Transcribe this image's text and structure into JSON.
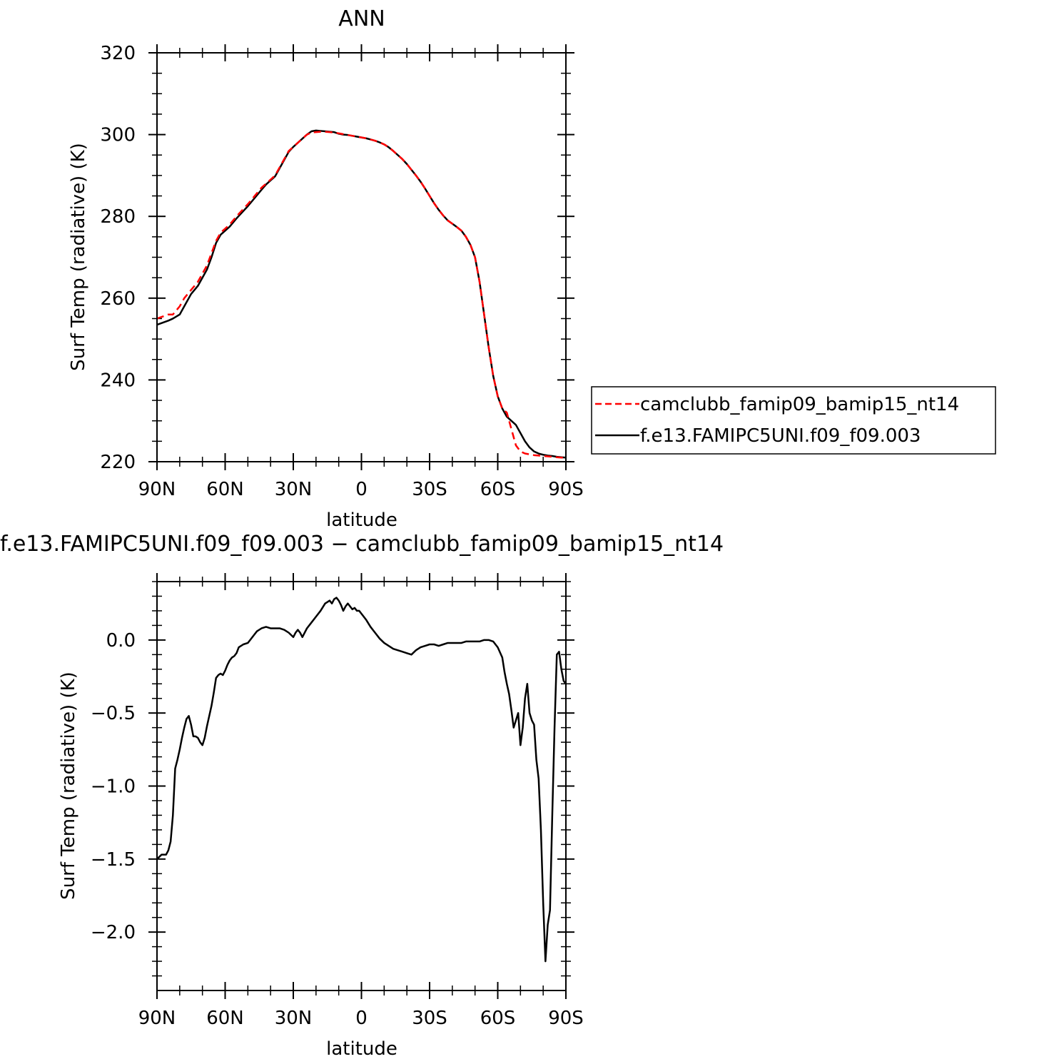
{
  "chart_data": [
    {
      "type": "line",
      "title": "ANN",
      "xlabel": "latitude",
      "ylabel": "Surf Temp (radiative) (K)",
      "xlim": [
        90,
        -90
      ],
      "ylim": [
        220,
        320
      ],
      "x_ticks": [
        {
          "value": 90,
          "label": "90N"
        },
        {
          "value": 60,
          "label": "60N"
        },
        {
          "value": 30,
          "label": "30N"
        },
        {
          "value": 0,
          "label": "0"
        },
        {
          "value": -30,
          "label": "30S"
        },
        {
          "value": -60,
          "label": "60S"
        },
        {
          "value": -90,
          "label": "90S"
        }
      ],
      "y_ticks": [
        {
          "value": 220,
          "label": "220"
        },
        {
          "value": 240,
          "label": "240"
        },
        {
          "value": 260,
          "label": "260"
        },
        {
          "value": 280,
          "label": "280"
        },
        {
          "value": 300,
          "label": "300"
        },
        {
          "value": 320,
          "label": "320"
        }
      ],
      "legend_position": "right",
      "series": [
        {
          "name": "camclubb_famip09_bamip15_nt14",
          "color": "#ff0000",
          "dash": "dashed",
          "x": [
            90,
            85,
            83,
            80,
            78,
            75,
            72,
            70,
            68,
            66,
            64,
            62,
            60,
            58,
            55,
            50,
            47,
            44,
            42,
            40,
            38,
            36,
            34,
            32,
            30,
            28,
            26,
            24,
            22,
            20,
            18,
            16,
            14,
            12,
            10,
            8,
            6,
            4,
            2,
            0,
            -2,
            -4,
            -6,
            -8,
            -10,
            -12,
            -14,
            -16,
            -18,
            -20,
            -22,
            -24,
            -26,
            -28,
            -30,
            -32,
            -34,
            -36,
            -38,
            -40,
            -42,
            -44,
            -46,
            -48,
            -50,
            -52,
            -54,
            -56,
            -58,
            -60,
            -62,
            -64,
            -66,
            -68,
            -70,
            -72,
            -74,
            -76,
            -78,
            -80,
            -82,
            -84,
            -86,
            -88,
            -90
          ],
          "y": [
            255,
            256,
            256,
            258,
            260,
            262,
            264,
            266,
            268,
            271,
            274,
            276,
            277,
            278,
            280,
            283,
            285,
            287,
            288,
            289,
            290,
            292,
            294,
            296,
            297,
            298,
            299,
            300,
            300.5,
            300.6,
            300.7,
            300.7,
            300.6,
            300.5,
            300.3,
            300.1,
            299.9,
            299.7,
            299.5,
            299.3,
            299.1,
            298.8,
            298.5,
            298.1,
            297.6,
            296.9,
            296.0,
            295.0,
            294.0,
            292.8,
            291.4,
            290.0,
            288.5,
            286.8,
            285.0,
            283.2,
            281.6,
            280.2,
            279.0,
            278.2,
            277.4,
            276.5,
            275.0,
            273.0,
            270.0,
            264.0,
            256.0,
            248.0,
            241.0,
            236.0,
            233.0,
            232.0,
            228.0,
            224.0,
            222.5,
            222.0,
            221.8,
            221.6,
            221.5,
            221.4,
            221.3,
            221.2,
            221.1,
            221.0,
            221.0
          ]
        },
        {
          "name": "f.e13.FAMIPC5UNI.f09_f09.003",
          "color": "#000000",
          "dash": "solid",
          "x": [
            90,
            85,
            83,
            80,
            78,
            75,
            72,
            70,
            68,
            66,
            64,
            62,
            60,
            58,
            55,
            50,
            47,
            44,
            42,
            40,
            38,
            36,
            34,
            32,
            30,
            28,
            26,
            24,
            22,
            20,
            18,
            16,
            14,
            12,
            10,
            8,
            6,
            4,
            2,
            0,
            -2,
            -4,
            -6,
            -8,
            -10,
            -12,
            -14,
            -16,
            -18,
            -20,
            -22,
            -24,
            -26,
            -28,
            -30,
            -32,
            -34,
            -36,
            -38,
            -40,
            -42,
            -44,
            -46,
            -48,
            -50,
            -52,
            -54,
            -56,
            -58,
            -60,
            -62,
            -64,
            -66,
            -68,
            -70,
            -72,
            -74,
            -76,
            -78,
            -80,
            -82,
            -84,
            -86,
            -88,
            -90
          ],
          "y": [
            253.5,
            254.5,
            255,
            256,
            258,
            261,
            263,
            265,
            267,
            270,
            273.5,
            275.5,
            276.5,
            277.5,
            279.5,
            282.5,
            284.5,
            286.5,
            287.8,
            288.8,
            289.8,
            291.8,
            293.8,
            295.8,
            297.0,
            298.0,
            299.0,
            300.0,
            300.8,
            301.0,
            300.9,
            300.8,
            300.7,
            300.6,
            300.2,
            300.0,
            299.9,
            299.7,
            299.5,
            299.3,
            299.1,
            298.8,
            298.5,
            298.1,
            297.6,
            296.9,
            296.0,
            295.0,
            294.0,
            292.8,
            291.4,
            290.0,
            288.5,
            286.8,
            285.0,
            283.2,
            281.6,
            280.2,
            279.0,
            278.2,
            277.4,
            276.5,
            275.0,
            273.0,
            270.0,
            264.0,
            256.0,
            248.0,
            241.0,
            236.0,
            233.0,
            231.0,
            230.0,
            229.0,
            227.0,
            225.0,
            223.5,
            222.5,
            222.0,
            221.7,
            221.5,
            221.4,
            221.2,
            221.1,
            221.0
          ]
        }
      ]
    },
    {
      "type": "line",
      "title": "f.e13.FAMIPC5UNI.f09_f09.003 − camclubb_famip09_bamip15_nt14",
      "xlabel": "latitude",
      "ylabel": "Surf Temp (radiative) (K)",
      "xlim": [
        90,
        -90
      ],
      "ylim": [
        -2.4,
        0.4
      ],
      "x_ticks": [
        {
          "value": 90,
          "label": "90N"
        },
        {
          "value": 60,
          "label": "60N"
        },
        {
          "value": 30,
          "label": "30N"
        },
        {
          "value": 0,
          "label": "0"
        },
        {
          "value": -30,
          "label": "30S"
        },
        {
          "value": -60,
          "label": "60S"
        },
        {
          "value": -90,
          "label": "90S"
        }
      ],
      "y_ticks": [
        {
          "value": 0.0,
          "label": "0.0"
        },
        {
          "value": -0.5,
          "label": "−0.5"
        },
        {
          "value": -1.0,
          "label": "−1.0"
        },
        {
          "value": -1.5,
          "label": "−1.5"
        },
        {
          "value": -2.0,
          "label": "−2.0"
        }
      ],
      "series": [
        {
          "color": "#000000",
          "dash": "solid",
          "x": [
            90,
            88,
            86,
            85,
            84,
            83,
            82,
            81,
            80,
            79,
            78,
            77,
            76,
            75,
            74,
            73,
            72,
            71,
            70,
            69,
            68,
            67,
            66,
            65,
            64,
            63,
            62,
            61,
            60,
            59,
            58,
            57,
            56,
            55,
            54,
            52,
            50,
            49,
            48,
            47,
            46,
            44,
            42,
            40,
            38,
            36,
            34,
            32,
            30,
            29,
            28,
            27,
            26,
            25,
            24,
            22,
            20,
            18,
            16,
            15,
            14,
            13,
            12,
            11,
            10,
            9,
            8,
            7,
            6,
            5,
            4,
            3,
            2,
            1,
            0,
            -2,
            -4,
            -6,
            -8,
            -10,
            -12,
            -14,
            -16,
            -18,
            -20,
            -22,
            -24,
            -26,
            -28,
            -30,
            -32,
            -34,
            -36,
            -38,
            -40,
            -42,
            -44,
            -46,
            -48,
            -50,
            -52,
            -54,
            -56,
            -58,
            -60,
            -62,
            -63,
            -64,
            -65,
            -66,
            -67,
            -68,
            -69,
            -70,
            -71,
            -72,
            -73,
            -74,
            -75,
            -76,
            -77,
            -78,
            -79,
            -80,
            -81,
            -82,
            -83,
            -84,
            -85,
            -86,
            -87,
            -88,
            -89,
            -90
          ],
          "y": [
            -1.5,
            -1.47,
            -1.47,
            -1.44,
            -1.38,
            -1.2,
            -0.88,
            -0.82,
            -0.75,
            -0.67,
            -0.6,
            -0.54,
            -0.52,
            -0.58,
            -0.66,
            -0.66,
            -0.67,
            -0.7,
            -0.72,
            -0.67,
            -0.59,
            -0.52,
            -0.45,
            -0.36,
            -0.26,
            -0.24,
            -0.23,
            -0.24,
            -0.21,
            -0.17,
            -0.14,
            -0.12,
            -0.11,
            -0.09,
            -0.05,
            -0.03,
            -0.02,
            0.0,
            0.02,
            0.04,
            0.06,
            0.08,
            0.09,
            0.08,
            0.08,
            0.08,
            0.07,
            0.05,
            0.02,
            0.05,
            0.07,
            0.05,
            0.02,
            0.05,
            0.08,
            0.12,
            0.16,
            0.2,
            0.25,
            0.26,
            0.27,
            0.25,
            0.28,
            0.29,
            0.27,
            0.24,
            0.2,
            0.23,
            0.25,
            0.23,
            0.21,
            0.22,
            0.2,
            0.2,
            0.18,
            0.14,
            0.09,
            0.05,
            0.01,
            -0.02,
            -0.04,
            -0.06,
            -0.07,
            -0.08,
            -0.09,
            -0.1,
            -0.07,
            -0.05,
            -0.04,
            -0.03,
            -0.03,
            -0.04,
            -0.03,
            -0.02,
            -0.02,
            -0.02,
            -0.02,
            -0.01,
            -0.01,
            -0.01,
            -0.01,
            0.0,
            0.0,
            -0.01,
            -0.05,
            -0.12,
            -0.22,
            -0.3,
            -0.37,
            -0.48,
            -0.6,
            -0.55,
            -0.5,
            -0.72,
            -0.6,
            -0.4,
            -0.3,
            -0.5,
            -0.55,
            -0.58,
            -0.82,
            -0.95,
            -1.3,
            -1.8,
            -2.2,
            -1.95,
            -1.85,
            -1.2,
            -0.6,
            -0.1,
            -0.08,
            -0.2,
            -0.28,
            -0.3
          ]
        }
      ]
    }
  ]
}
